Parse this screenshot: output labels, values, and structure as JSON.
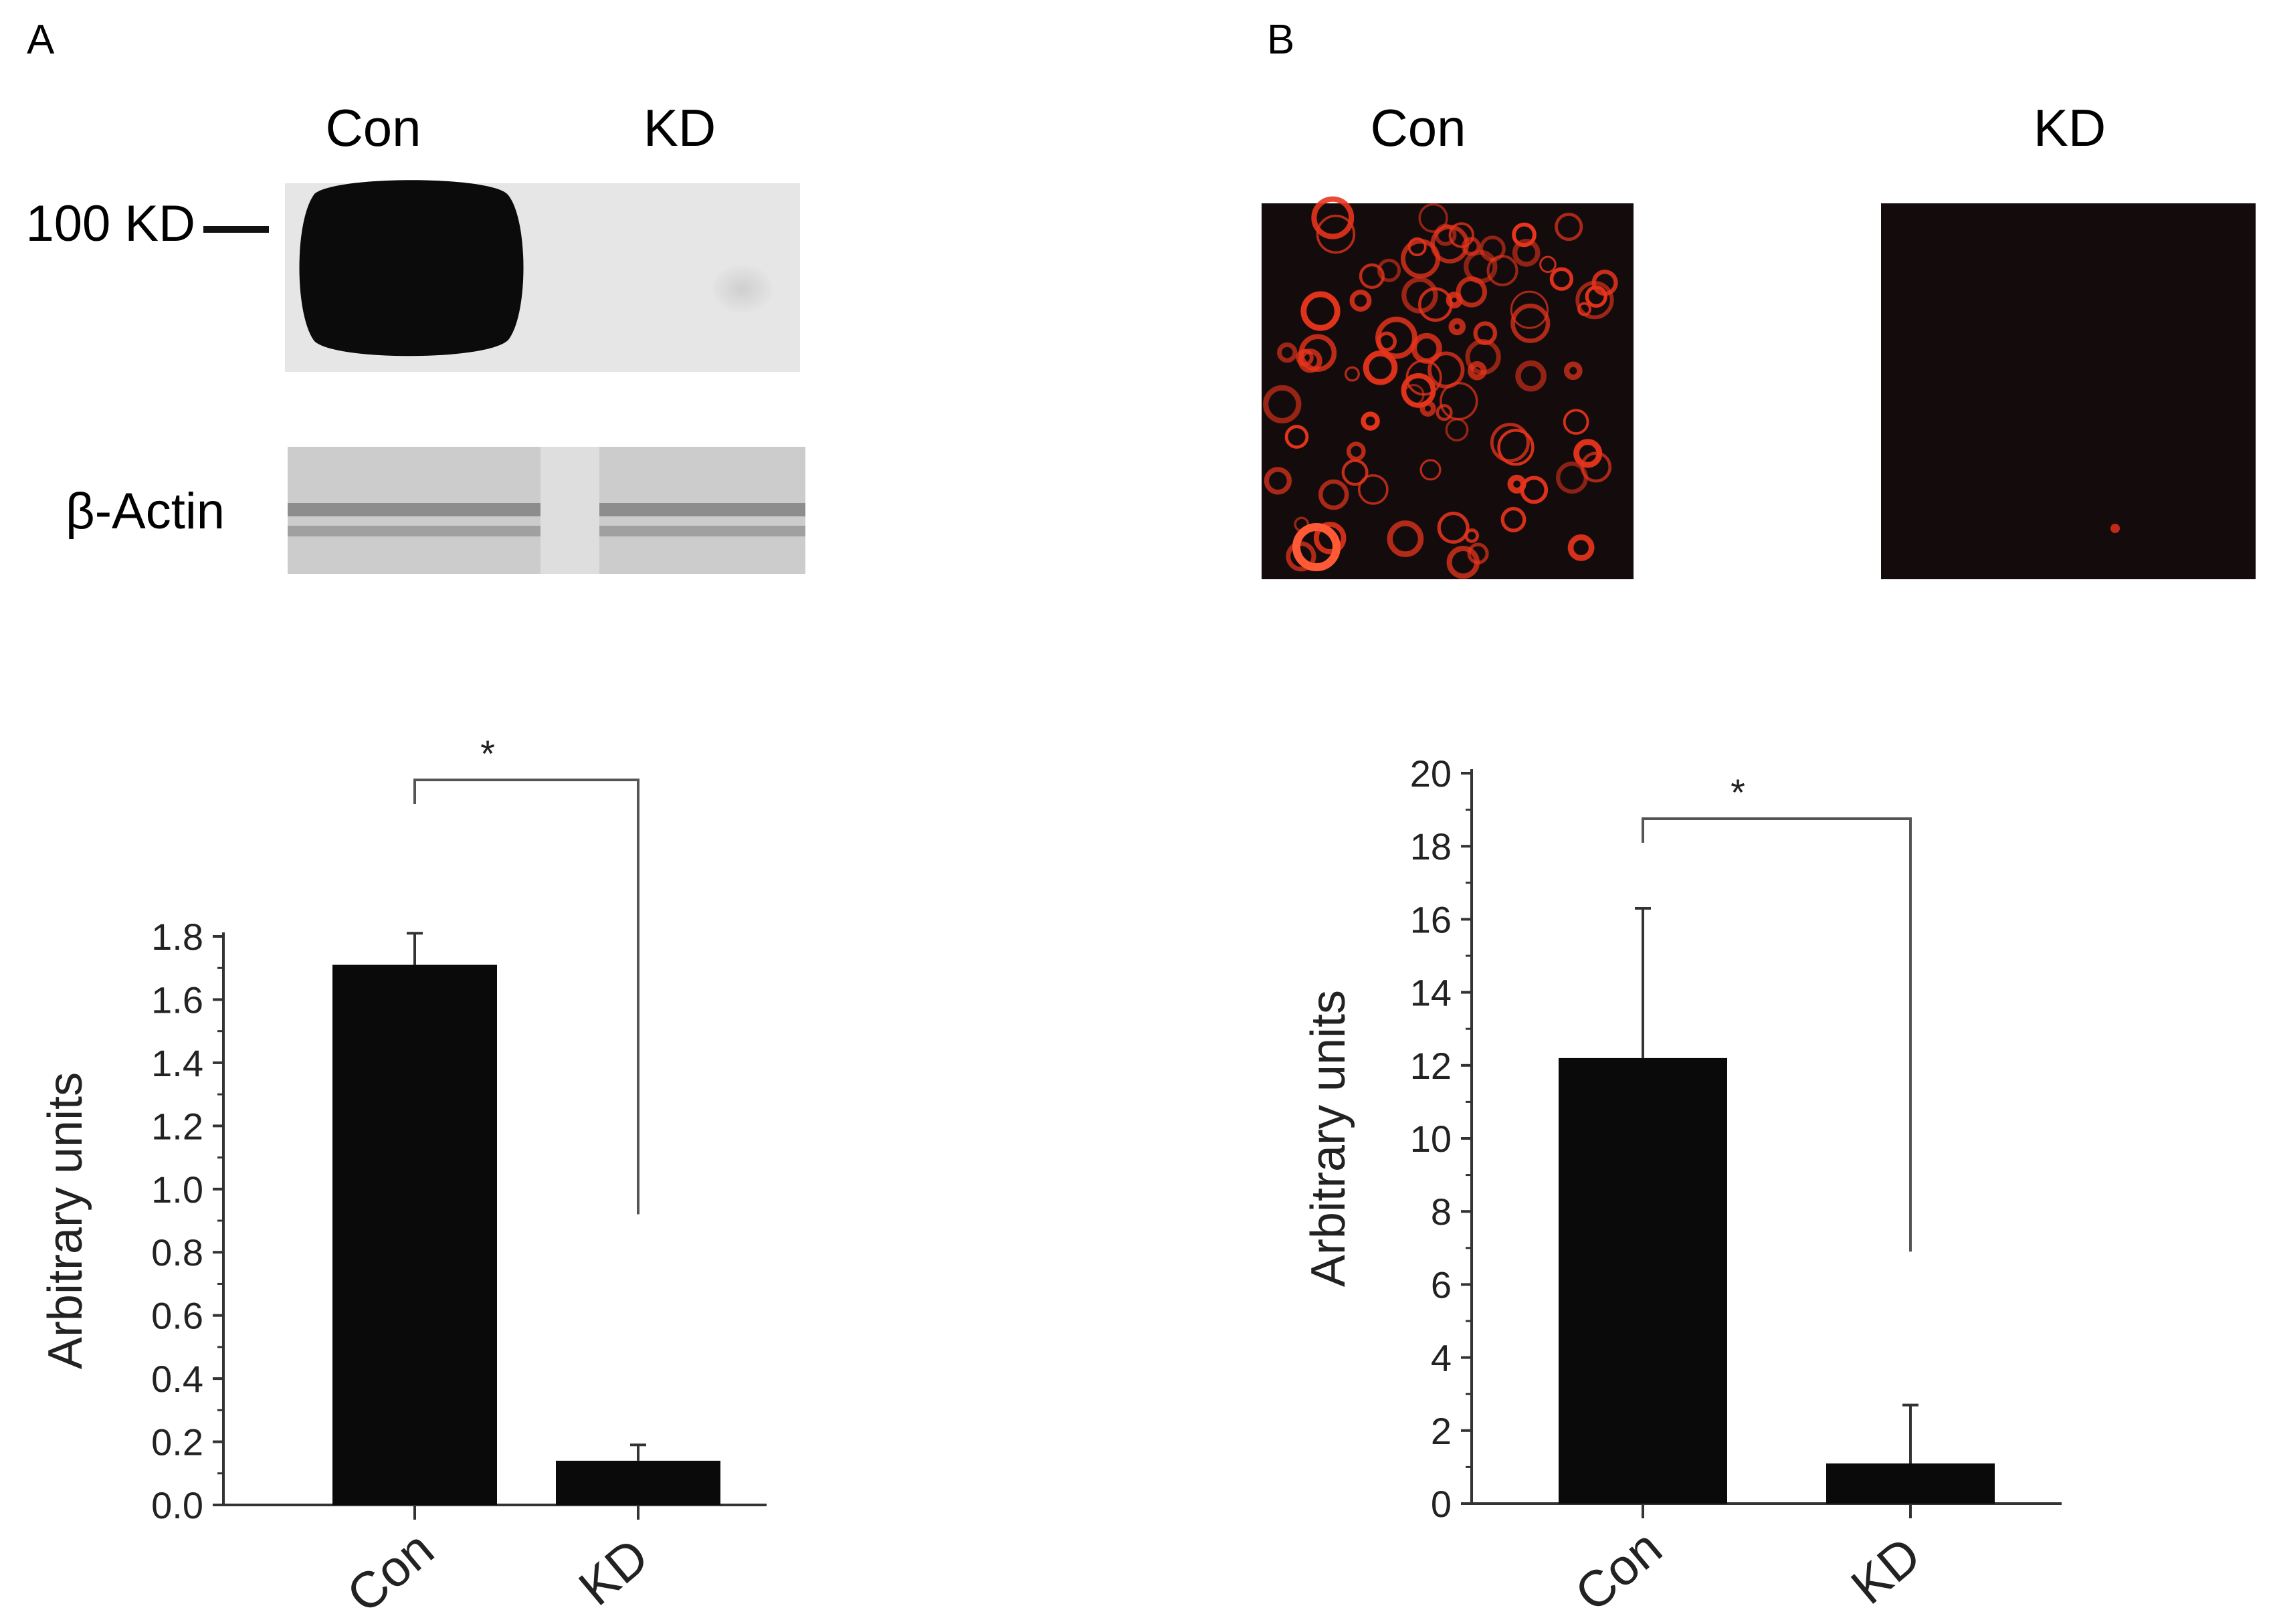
{
  "panels": [
    {
      "letter": "A",
      "blot_lane_labels": [
        "Con",
        "KD"
      ],
      "marker_label": "100 KD",
      "loading_label": "β-Actin"
    },
    {
      "letter": "B",
      "image_labels": [
        "Con",
        "KD"
      ]
    }
  ],
  "colors": {
    "bar": "#0a0a0a",
    "blot_background": "#e4e4e4",
    "micrograph_background": "#140c0c",
    "fluorescence": "#e8341c"
  },
  "chart_data": [
    {
      "type": "bar",
      "categories": [
        "Con",
        "KD"
      ],
      "values": [
        1.71,
        0.14
      ],
      "error": [
        0.1,
        0.05
      ],
      "ylabel": "Arbitrary units",
      "ylim": [
        0,
        1.8
      ],
      "yticks": [
        "0.0",
        "0.2",
        "0.4",
        "0.6",
        "0.8",
        "1.0",
        "1.2",
        "1.4",
        "1.6",
        "1.8"
      ],
      "significance": {
        "between": [
          "Con",
          "KD"
        ],
        "label": "*"
      },
      "grid": false
    },
    {
      "type": "bar",
      "categories": [
        "Con",
        "KD"
      ],
      "values": [
        12.2,
        1.1
      ],
      "error": [
        4.1,
        1.6
      ],
      "ylabel": "Arbitrary units",
      "ylim": [
        0,
        20
      ],
      "yticks": [
        "0",
        "2",
        "4",
        "6",
        "8",
        "10",
        "12",
        "14",
        "16",
        "18",
        "20"
      ],
      "significance": {
        "between": [
          "Con",
          "KD"
        ],
        "label": "*"
      },
      "grid": false
    }
  ]
}
